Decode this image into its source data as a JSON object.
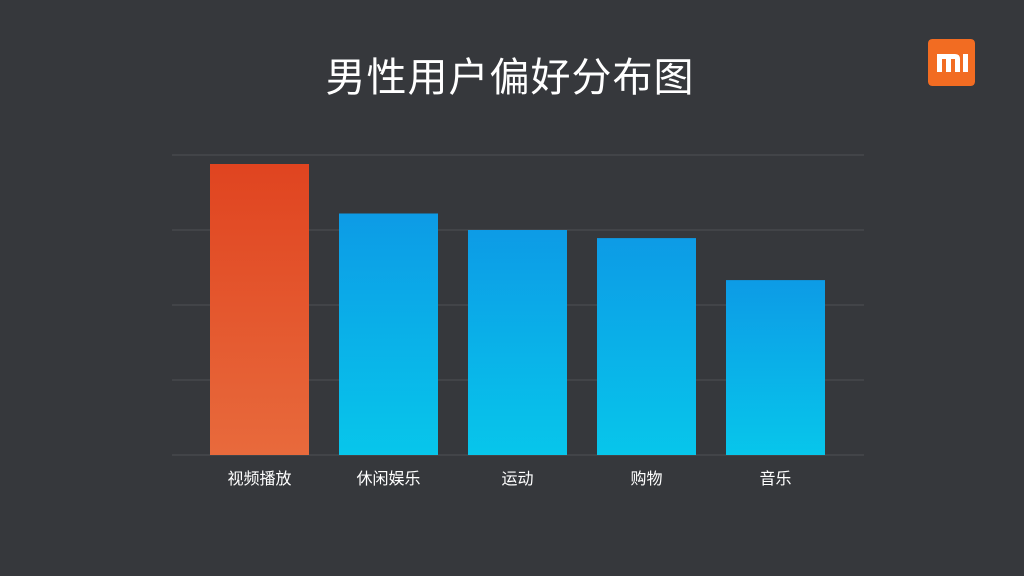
{
  "title": "男性用户偏好分布图",
  "logo": {
    "icon": "mi-logo-icon",
    "text": "MI",
    "color": "#f26c22"
  },
  "colors": {
    "background": "#36383c",
    "gridline": "#4e5055",
    "highlight_top": "#e04420",
    "highlight_bottom": "#e86a3c",
    "normal_top": "#0d9be6",
    "normal_bottom": "#07c6eb"
  },
  "chart_data": {
    "type": "bar",
    "title": "男性用户偏好分布图",
    "categories": [
      "视频播放",
      "休闲娱乐",
      "运动",
      "购物",
      "音乐"
    ],
    "values": [
      97,
      80.5,
      75,
      72.3,
      58.3
    ],
    "highlight_index": 0,
    "ylim": [
      0,
      100
    ],
    "gridlines": [
      0,
      25,
      50,
      75,
      100
    ],
    "grid": true,
    "xlabel": "",
    "ylabel": "",
    "show_y_tick_labels": false,
    "legend": "none"
  }
}
